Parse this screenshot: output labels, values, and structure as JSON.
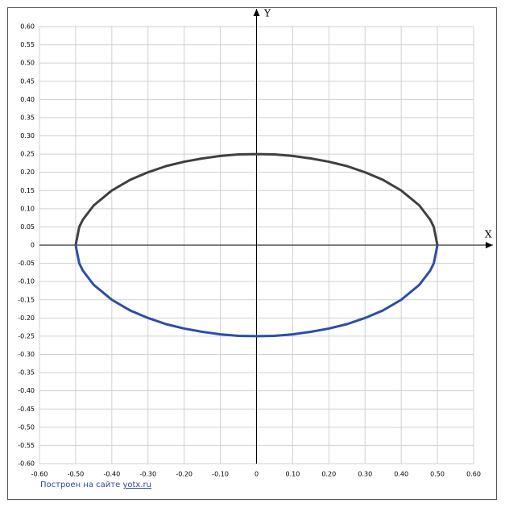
{
  "chart_data": {
    "type": "line",
    "x_axis_label": "X",
    "y_axis_label": "Y",
    "x": [
      -0.5,
      -0.49,
      -0.48,
      -0.45,
      -0.4,
      -0.35,
      -0.3,
      -0.25,
      -0.2,
      -0.15,
      -0.1,
      -0.05,
      0,
      0.05,
      0.1,
      0.15,
      0.2,
      0.25,
      0.3,
      0.35,
      0.4,
      0.45,
      0.48,
      0.49,
      0.5
    ],
    "series": [
      {
        "color": "#404040",
        "values": [
          0,
          0.05,
          0.07,
          0.109,
          0.15,
          0.179,
          0.2,
          0.217,
          0.229,
          0.238,
          0.245,
          0.249,
          0.25,
          0.249,
          0.245,
          0.238,
          0.229,
          0.217,
          0.2,
          0.179,
          0.15,
          0.109,
          0.07,
          0.05,
          0
        ]
      },
      {
        "color": "#2c4ea8",
        "values": [
          0,
          -0.05,
          -0.07,
          -0.109,
          -0.15,
          -0.179,
          -0.2,
          -0.217,
          -0.229,
          -0.238,
          -0.245,
          -0.249,
          -0.25,
          -0.249,
          -0.245,
          -0.238,
          -0.229,
          -0.217,
          -0.2,
          -0.179,
          -0.15,
          -0.109,
          -0.07,
          -0.05,
          0
        ]
      }
    ],
    "xlim": [
      -0.6,
      0.6
    ],
    "ylim": [
      -0.6,
      0.6
    ],
    "xticks": [
      {
        "value": -0.6,
        "label": "-0.60"
      },
      {
        "value": -0.5,
        "label": "-0.50"
      },
      {
        "value": -0.4,
        "label": "-0.40"
      },
      {
        "value": -0.3,
        "label": "-0.30"
      },
      {
        "value": -0.2,
        "label": "-0.20"
      },
      {
        "value": -0.1,
        "label": "-0.10"
      },
      0,
      {
        "value": 0.1,
        "label": "0.10"
      },
      {
        "value": 0.2,
        "label": "0.20"
      },
      {
        "value": 0.3,
        "label": "0.30"
      },
      {
        "value": 0.4,
        "label": "0.40"
      },
      {
        "value": 0.5,
        "label": "0.50"
      },
      {
        "value": 0.6,
        "label": "0.60"
      }
    ],
    "yticks": [
      {
        "value": 0.6,
        "label": "0.60"
      },
      {
        "value": 0.55,
        "label": "0.55"
      },
      {
        "value": 0.5,
        "label": "0.50"
      },
      {
        "value": 0.45,
        "label": "0.45"
      },
      {
        "value": 0.4,
        "label": "0.40"
      },
      {
        "value": 0.35,
        "label": "0.35"
      },
      {
        "value": 0.3,
        "label": "0.30"
      },
      {
        "value": 0.25,
        "label": "0.25"
      },
      {
        "value": 0.2,
        "label": "0.20"
      },
      {
        "value": 0.15,
        "label": "0.15"
      },
      {
        "value": 0.1,
        "label": "0.10"
      },
      {
        "value": 0.05,
        "label": "0.05"
      },
      0,
      {
        "value": -0.05,
        "label": "-0.05"
      },
      {
        "value": -0.1,
        "label": "-0.10"
      },
      {
        "value": -0.15,
        "label": "-0.15"
      },
      {
        "value": -0.2,
        "label": "-0.20"
      },
      {
        "value": -0.25,
        "label": "-0.25"
      },
      {
        "value": -0.3,
        "label": "-0.30"
      },
      {
        "value": -0.35,
        "label": "-0.35"
      },
      {
        "value": -0.4,
        "label": "-0.40"
      },
      {
        "value": -0.45,
        "label": "-0.45"
      },
      {
        "value": -0.5,
        "label": "-0.50"
      },
      {
        "value": -0.55,
        "label": "-0.55"
      },
      {
        "value": -0.6,
        "label": "-0.60"
      }
    ],
    "grid": true
  },
  "footer": {
    "text": "Построен на сайте",
    "link": "yotx.ru"
  }
}
